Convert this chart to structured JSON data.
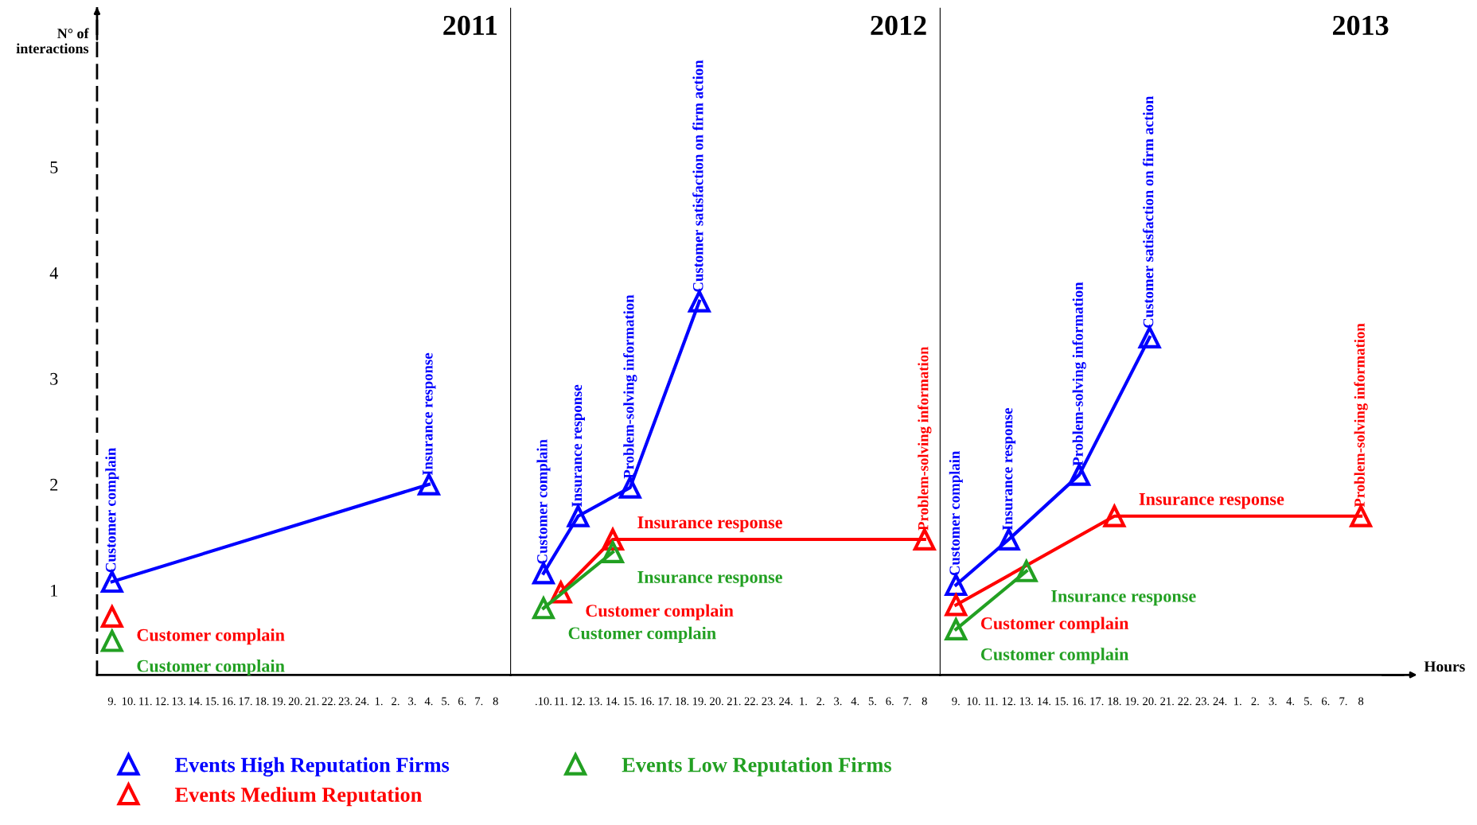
{
  "chart_data": [
    {
      "type": "line",
      "title": "2011",
      "ylabel": "N° of interactions",
      "legend": "bottom",
      "marker": "triangle",
      "grid": false,
      "ylim": [
        0.2,
        6.5
      ],
      "yticks": [
        1,
        2,
        3,
        4,
        5
      ],
      "categories": [
        "9.",
        "10.",
        "11.",
        "12.",
        "13.",
        "14.",
        "15.",
        "16.",
        "17.",
        "18.",
        "19.",
        "20.",
        "21.",
        "22.",
        "23.",
        "24.",
        "1.",
        "2.",
        "3.",
        "4.",
        "5.",
        "6.",
        "7.",
        "8"
      ],
      "series": [
        {
          "name": "Events High Reputation Firms",
          "color": "#0000ff",
          "x": [
            "9.",
            "4."
          ],
          "values": [
            1.08,
            2.0
          ]
        },
        {
          "name": "Events Medium Reputation",
          "color": "#ff0000",
          "x": [
            "9."
          ],
          "values": [
            0.75
          ]
        },
        {
          "name": "Events Low Reputation Firms",
          "color": "#22a022",
          "x": [
            "9."
          ],
          "values": [
            0.52
          ]
        }
      ],
      "annotations": [
        {
          "text": "Customer complain",
          "x": "9.",
          "y": 1.08
        },
        {
          "text": "Insurance response",
          "x": "4.",
          "y": 2.0
        },
        {
          "text": "Customer complain",
          "x": "9.",
          "y": 0.75
        },
        {
          "text": "Customer complain",
          "x": "9.",
          "y": 0.52
        }
      ]
    },
    {
      "type": "line",
      "title": "2012",
      "marker": "triangle",
      "grid": false,
      "tick_labels": "x",
      "ylim": [
        0.2,
        6.5
      ],
      "categories": [
        null,
        ".10.",
        "11.",
        "12.",
        "13.",
        "14.",
        "15.",
        "16.",
        "17.",
        "18.",
        "19.",
        "20.",
        "21.",
        "22.",
        "23.",
        "24.",
        "1.",
        "2.",
        "3.",
        "4.",
        "5.",
        "6.",
        "7.",
        "8"
      ],
      "series": [
        {
          "color": "#0000ff",
          "x": [
            ".10.",
            "12.",
            "15.",
            "19."
          ],
          "values": [
            1.16,
            1.7,
            1.97,
            3.73
          ]
        },
        {
          "color": "#ff0000",
          "x": [
            "11.",
            "14.",
            "8"
          ],
          "values": [
            0.98,
            1.48,
            1.48
          ]
        },
        {
          "color": "#22a022",
          "x": [
            ".10.",
            "14."
          ],
          "values": [
            0.83,
            1.36
          ]
        }
      ],
      "annotations": [
        {
          "text": "Customer complain",
          "x": ".10.",
          "y": 1.16
        },
        {
          "text": "Insurance response",
          "x": "12.",
          "y": 1.7
        },
        {
          "text": "Problem-solving information",
          "x": "15.",
          "y": 1.97
        },
        {
          "text": "Customer satisfaction on firm action",
          "x": "19.",
          "y": 3.73
        },
        {
          "text": "Customer complain",
          "x": "11.",
          "y": 0.98
        },
        {
          "text": "Insurance response",
          "x": "14.",
          "y": 1.48
        },
        {
          "text": "Problem-solving information",
          "x": "8",
          "y": 1.48
        },
        {
          "text": "Customer complain",
          "x": ".10.",
          "y": 0.83
        },
        {
          "text": "Insurance response",
          "x": "14.",
          "y": 1.36
        }
      ]
    },
    {
      "type": "line",
      "title": "2013",
      "xlabel": "Hours",
      "marker": "triangle",
      "grid": false,
      "tick_labels": "x",
      "ylim": [
        0.2,
        6.5
      ],
      "categories": [
        "9.",
        "10.",
        "11.",
        "12.",
        "13.",
        "14.",
        "15.",
        "16.",
        "17.",
        "18.",
        "19.",
        "20.",
        "21.",
        "22.",
        "23.",
        "24.",
        "1.",
        "2.",
        "3.",
        "4.",
        "5.",
        "6.",
        "7.",
        "8"
      ],
      "series": [
        {
          "color": "#0000ff",
          "x": [
            "9.",
            "12.",
            "16.",
            "20."
          ],
          "values": [
            1.05,
            1.48,
            2.09,
            3.39
          ]
        },
        {
          "color": "#ff0000",
          "x": [
            "9.",
            "18.",
            "8"
          ],
          "values": [
            0.86,
            1.7,
            1.7
          ]
        },
        {
          "color": "#22a022",
          "x": [
            "9.",
            "13."
          ],
          "values": [
            0.63,
            1.18
          ]
        }
      ],
      "annotations": [
        {
          "text": "Customer complain",
          "x": "9.",
          "y": 1.05
        },
        {
          "text": "Insurance response",
          "x": "12.",
          "y": 1.48
        },
        {
          "text": "Problem-solving information",
          "x": "16.",
          "y": 2.09
        },
        {
          "text": "Customer satisfaction on firm action",
          "x": "20.",
          "y": 3.39
        },
        {
          "text": "Customer complain",
          "x": "9.",
          "y": 0.86
        },
        {
          "text": "Insurance response",
          "x": "18.",
          "y": 1.7
        },
        {
          "text": "Problem-solving information",
          "x": "8",
          "y": 1.7
        },
        {
          "text": "Customer complain",
          "x": "9.",
          "y": 0.63
        },
        {
          "text": "Insurance response",
          "x": "13.",
          "y": 1.18
        }
      ]
    }
  ]
}
